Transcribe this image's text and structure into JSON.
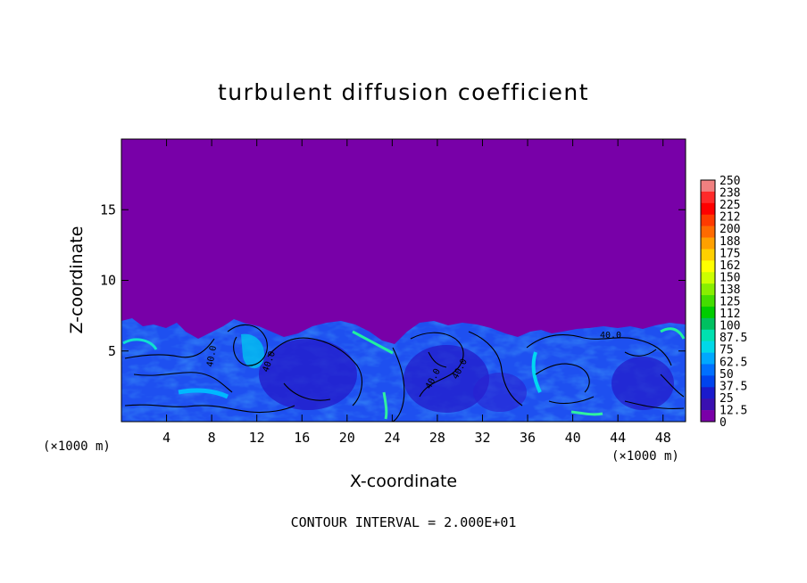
{
  "chart_data": {
    "type": "heatmap",
    "title": "turbulent diffusion coefficient",
    "xlabel": "X-coordinate",
    "ylabel": "Z-coordinate",
    "x_unit_left": "(×1000 m)",
    "x_unit_right": "(×1000 m)",
    "xlim": [
      0,
      50
    ],
    "ylim": [
      0,
      20
    ],
    "x_ticks": [
      4,
      8,
      12,
      16,
      20,
      24,
      28,
      32,
      36,
      40,
      44,
      48
    ],
    "y_ticks": [
      5,
      10,
      15
    ],
    "contour_interval_label": "CONTOUR INTERVAL = 2.000E+01",
    "contour_labels": [
      "40.0",
      "40.0",
      "40.0",
      "40.0",
      "40.0"
    ],
    "colorbar": {
      "levels": [
        "250",
        "238",
        "225",
        "212",
        "200",
        "188",
        "175",
        "162",
        "150",
        "138",
        "125",
        "112",
        "100",
        "87.5",
        "75",
        "62.5",
        "50",
        "37.5",
        "25",
        "12.5",
        "0"
      ],
      "colors": [
        "#f08080",
        "#ff2a2a",
        "#ff0000",
        "#ff3a00",
        "#ff6a00",
        "#ffa000",
        "#ffd000",
        "#ffff00",
        "#ccff00",
        "#88ee00",
        "#44dd00",
        "#00cc00",
        "#00c060",
        "#00e0b0",
        "#00d8e8",
        "#00a8ff",
        "#0070ff",
        "#0044ee",
        "#1a1acc",
        "#3a10b0",
        "#7a00a8"
      ]
    },
    "background_value": 0,
    "turbulent_layer_top_approx": 7,
    "typical_layer_value": 40
  }
}
